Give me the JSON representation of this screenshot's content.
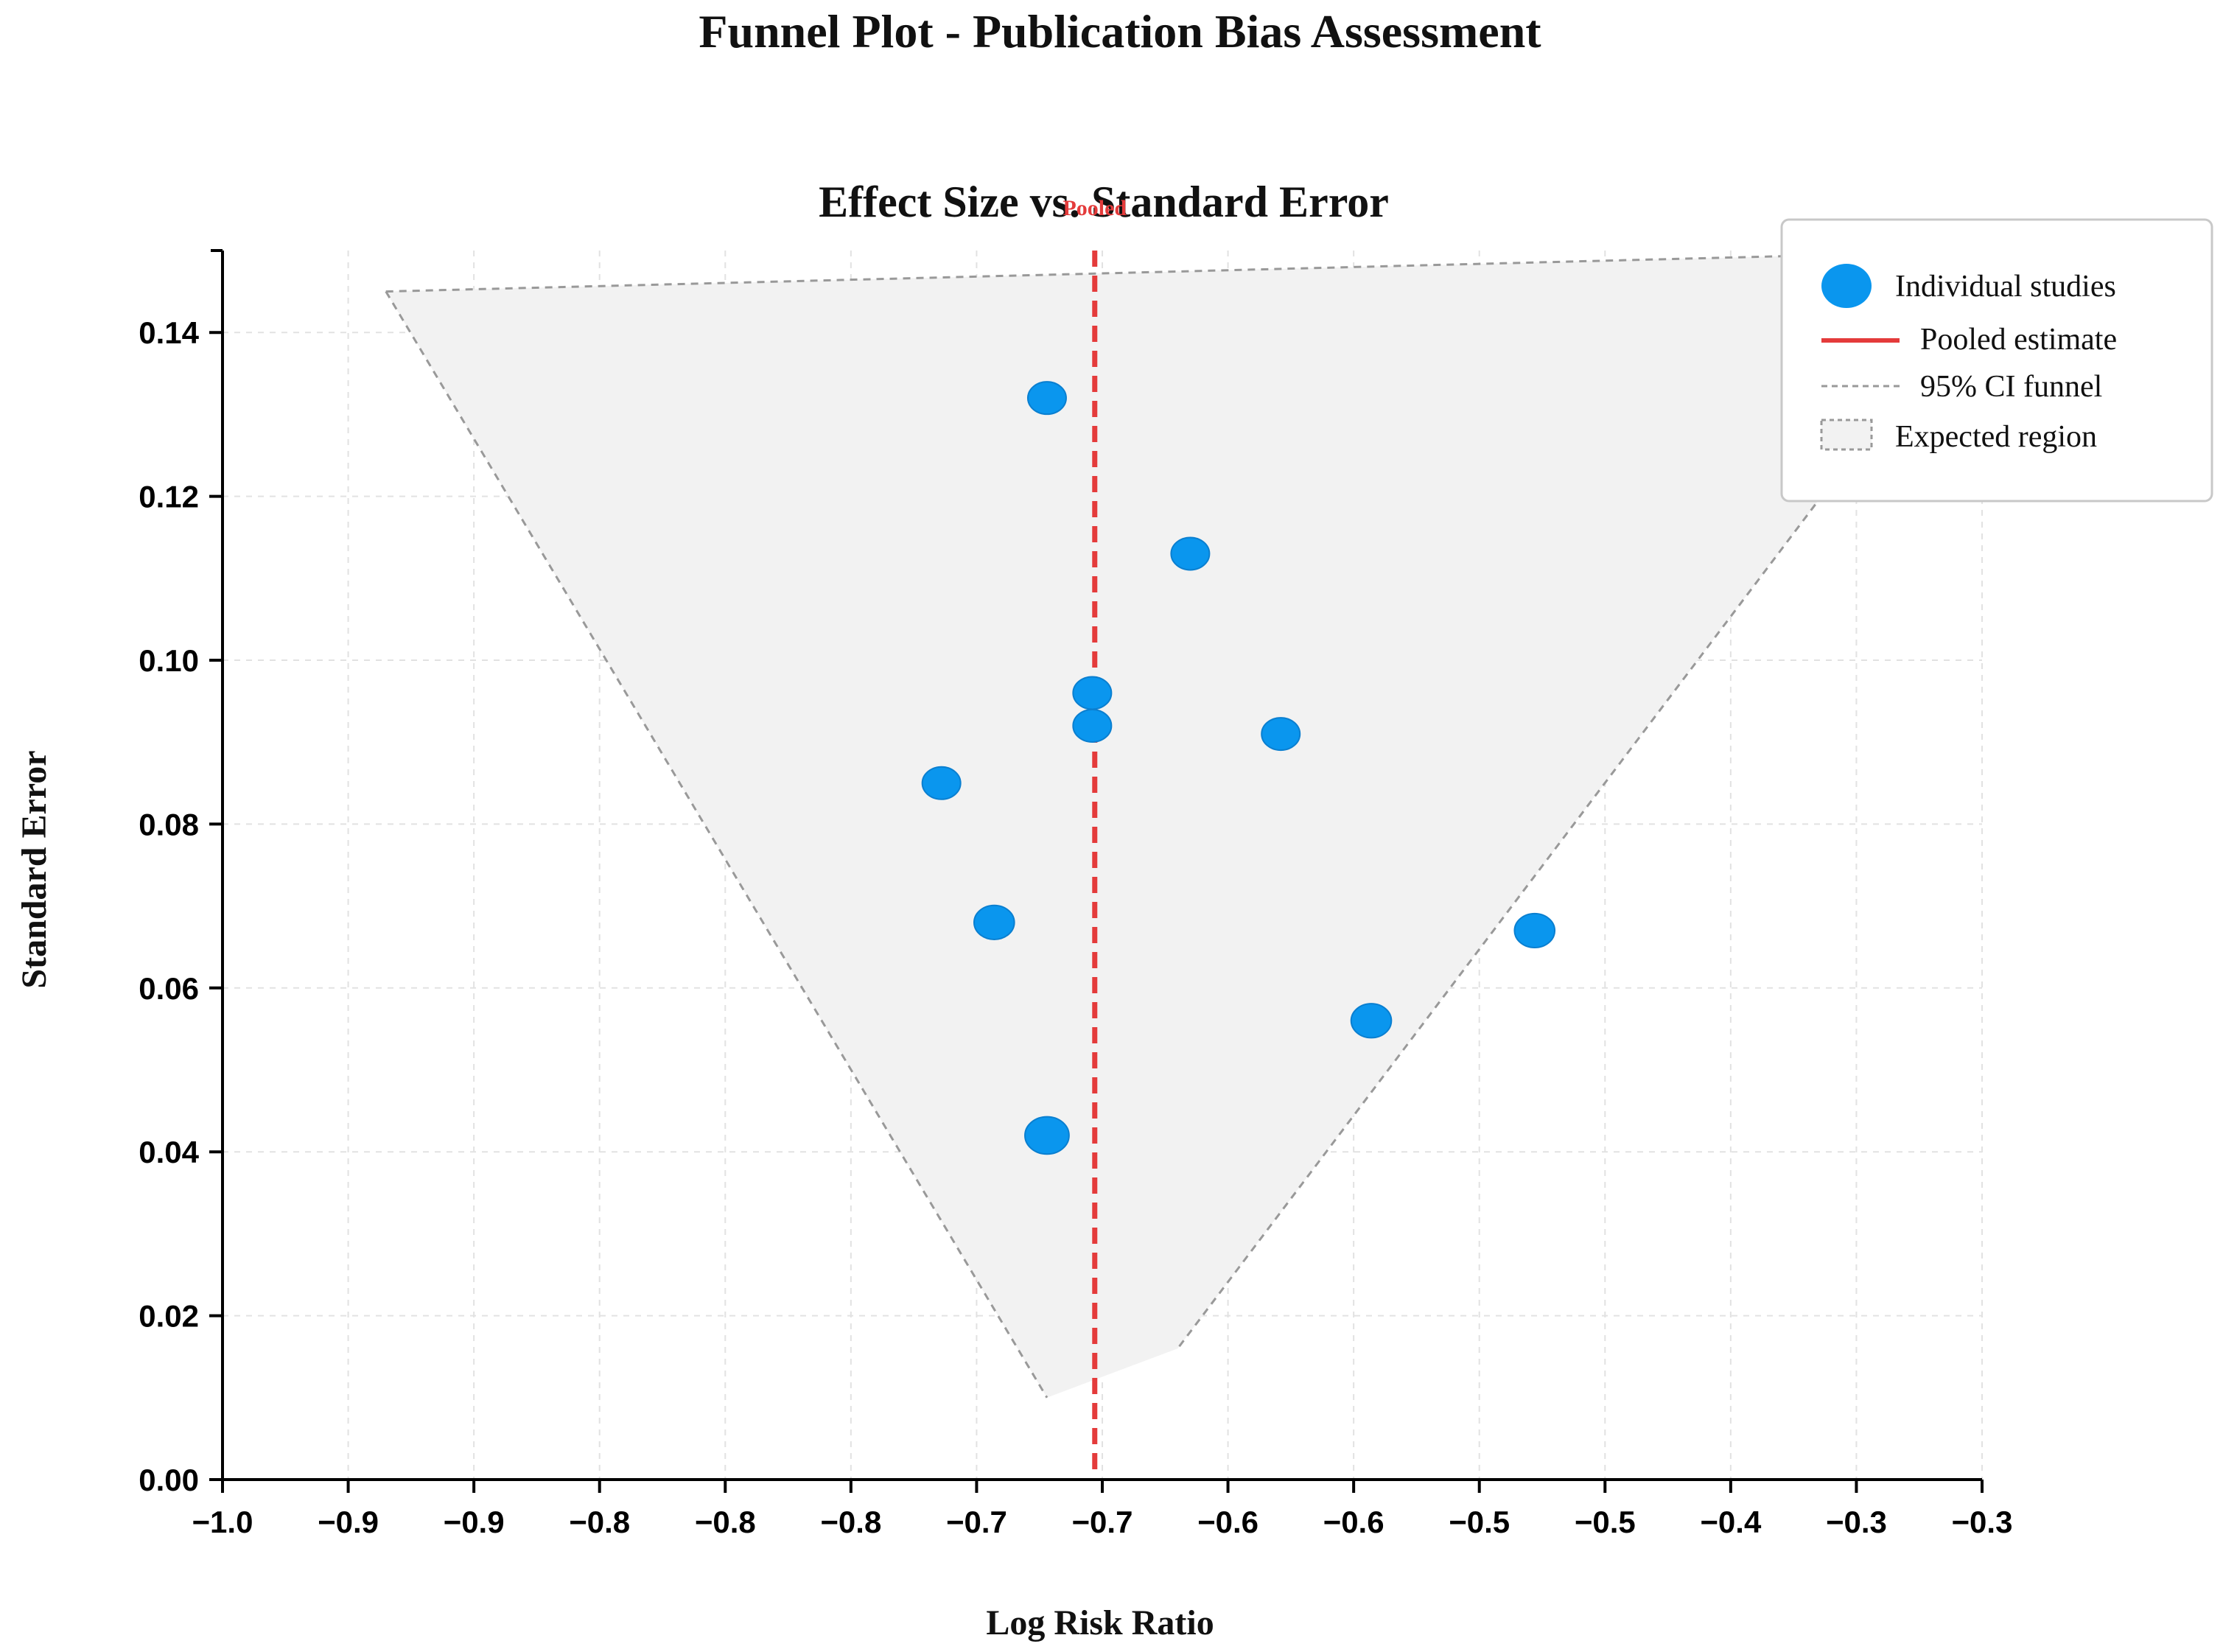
{
  "chart_data": {
    "type": "scatter",
    "title": "Funnel Plot - Publication Bias Assessment",
    "subtitle": "Effect Size vs. Standard Error",
    "xlabel": "Log Risk Ratio",
    "ylabel": "Standard Error",
    "xlim": [
      -1.0,
      -0.3
    ],
    "ylim": [
      0.0,
      0.15
    ],
    "x_tick_values": [
      -1.0,
      -0.95,
      -0.9,
      -0.85,
      -0.8,
      -0.75,
      -0.7,
      -0.65,
      -0.6,
      -0.55,
      -0.5,
      -0.45,
      -0.4,
      -0.35,
      -0.3
    ],
    "x_tick_labels": [
      "−1.0",
      "−0.9",
      "−0.9",
      "−0.8",
      "−0.8",
      "−0.8",
      "−0.7",
      "−0.7",
      "−0.6",
      "−0.6",
      "−0.5",
      "−0.5",
      "−0.4",
      "−0.3",
      "−0.3"
    ],
    "y_tick_values": [
      0.0,
      0.02,
      0.04,
      0.06,
      0.08,
      0.1,
      0.12,
      0.14
    ],
    "y_tick_labels": [
      "0.00",
      "0.02",
      "0.04",
      "0.06",
      "0.08",
      "0.10",
      "0.12",
      "0.14"
    ],
    "grid": true,
    "pooled_estimate": -0.653,
    "pooled_label": "Pooled",
    "funnel": {
      "top": [
        [
          -0.935,
          0.145
        ],
        [
          -0.29,
          0.15
        ]
      ],
      "left_bottom": [
        -0.672,
        0.01
      ],
      "right_bottom": [
        -0.62,
        0.016
      ]
    },
    "series": [
      {
        "name": "Individual studies",
        "points": [
          {
            "x": -0.672,
            "y": 0.132
          },
          {
            "x": -0.615,
            "y": 0.113
          },
          {
            "x": -0.654,
            "y": 0.096
          },
          {
            "x": -0.654,
            "y": 0.092
          },
          {
            "x": -0.579,
            "y": 0.091
          },
          {
            "x": -0.714,
            "y": 0.085
          },
          {
            "x": -0.693,
            "y": 0.068
          },
          {
            "x": -0.478,
            "y": 0.067
          },
          {
            "x": -0.543,
            "y": 0.056
          },
          {
            "x": -0.672,
            "y": 0.042
          }
        ]
      }
    ],
    "legend": {
      "position": "top-right",
      "entries": [
        {
          "label": "Individual studies",
          "kind": "marker"
        },
        {
          "label": "Pooled estimate",
          "kind": "line"
        },
        {
          "label": "95% CI funnel",
          "kind": "dashed"
        },
        {
          "label": "Expected region",
          "kind": "area"
        }
      ]
    },
    "colors": {
      "points": "#0a96ee",
      "pooled": "#e43b3b",
      "funnel_line": "#999999",
      "funnel_fill": "#f2f2f2"
    }
  }
}
